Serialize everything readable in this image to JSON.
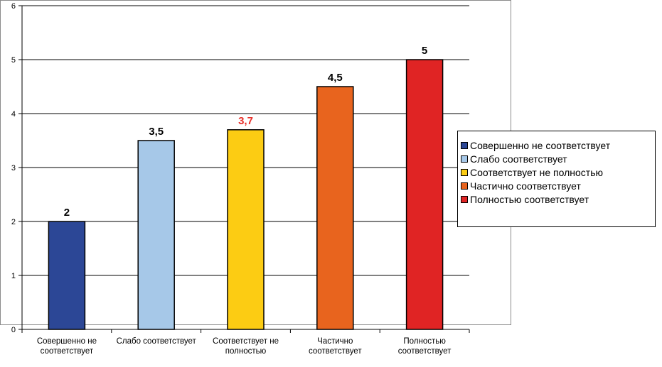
{
  "chart_data": {
    "type": "bar",
    "categories": [
      [
        "Совершенно не",
        "соответствует"
      ],
      [
        "Слабо соответствует"
      ],
      [
        "Соответствует не",
        "полностью"
      ],
      [
        "Частично",
        "соответствует"
      ],
      [
        "Полностью",
        "соответствует"
      ]
    ],
    "values": [
      2,
      3.5,
      3.7,
      4.5,
      5
    ],
    "value_labels": [
      "2",
      "3,5",
      "3,7",
      "4,5",
      "5"
    ],
    "value_label_colors": [
      "#000000",
      "#000000",
      "#e8302a",
      "#000000",
      "#000000"
    ],
    "colors": [
      "#2c4796",
      "#a6c8e8",
      "#fccc13",
      "#e8641e",
      "#e02424"
    ],
    "ylim": [
      0,
      6
    ],
    "yticks": [
      0,
      1,
      2,
      3,
      4,
      5,
      6
    ],
    "grid": true,
    "legend_position": "right",
    "legend": [
      {
        "label": "Совершенно не соответствует",
        "color": "#2c4796"
      },
      {
        "label": "Слабо соответствует",
        "color": "#a6c8e8"
      },
      {
        "label": "Соответствует не полностью",
        "color": "#fccc13"
      },
      {
        "label": "Частично соответствует",
        "color": "#e8641e"
      },
      {
        "label": "Полностью соответствует",
        "color": "#e02424"
      }
    ],
    "title": "",
    "xlabel": "",
    "ylabel": ""
  }
}
